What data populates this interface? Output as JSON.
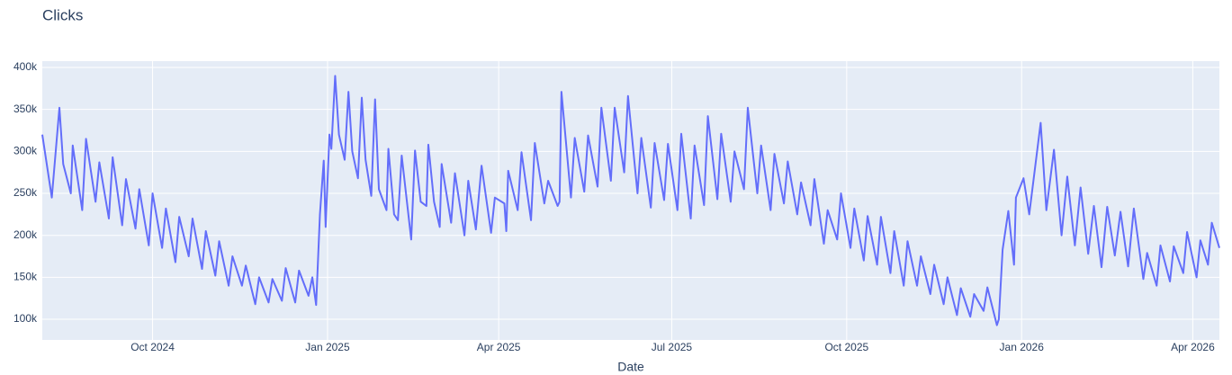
{
  "chart_data": {
    "type": "line",
    "title": "Clicks",
    "x_label": "Date",
    "x": [
      "2024-08-04",
      "2024-08-09",
      "2024-08-13",
      "2024-08-15",
      "2024-08-19",
      "2024-08-20",
      "2024-08-25",
      "2024-08-27",
      "2024-09-01",
      "2024-09-03",
      "2024-09-08",
      "2024-09-10",
      "2024-09-15",
      "2024-09-17",
      "2024-09-22",
      "2024-09-24",
      "2024-09-29",
      "2024-10-01",
      "2024-10-06",
      "2024-10-08",
      "2024-10-13",
      "2024-10-15",
      "2024-10-20",
      "2024-10-22",
      "2024-10-27",
      "2024-10-29",
      "2024-11-03",
      "2024-11-05",
      "2024-11-10",
      "2024-11-12",
      "2024-11-17",
      "2024-11-19",
      "2024-11-24",
      "2024-11-26",
      "2024-12-01",
      "2024-12-03",
      "2024-12-08",
      "2024-12-10",
      "2024-12-15",
      "2024-12-17",
      "2024-12-22",
      "2024-12-24",
      "2024-12-26",
      "2024-12-28",
      "2024-12-30",
      "2024-12-31",
      "2025-01-02",
      "2025-01-03",
      "2025-01-05",
      "2025-01-07",
      "2025-01-10",
      "2025-01-12",
      "2025-01-14",
      "2025-01-17",
      "2025-01-19",
      "2025-01-21",
      "2025-01-24",
      "2025-01-26",
      "2025-01-28",
      "2025-02-01",
      "2025-02-02",
      "2025-02-05",
      "2025-02-07",
      "2025-02-09",
      "2025-02-14",
      "2025-02-16",
      "2025-02-19",
      "2025-02-22",
      "2025-02-23",
      "2025-02-26",
      "2025-03-01",
      "2025-03-02",
      "2025-03-07",
      "2025-03-09",
      "2025-03-14",
      "2025-03-16",
      "2025-03-20",
      "2025-03-23",
      "2025-03-28",
      "2025-03-30",
      "2025-04-04",
      "2025-04-05",
      "2025-04-06",
      "2025-04-11",
      "2025-04-13",
      "2025-04-18",
      "2025-04-20",
      "2025-04-25",
      "2025-04-27",
      "2025-05-02",
      "2025-05-03",
      "2025-05-04",
      "2025-05-09",
      "2025-05-11",
      "2025-05-16",
      "2025-05-18",
      "2025-05-23",
      "2025-05-25",
      "2025-05-30",
      "2025-06-01",
      "2025-06-06",
      "2025-06-08",
      "2025-06-13",
      "2025-06-15",
      "2025-06-20",
      "2025-06-22",
      "2025-06-27",
      "2025-06-29",
      "2025-07-04",
      "2025-07-06",
      "2025-07-11",
      "2025-07-13",
      "2025-07-18",
      "2025-07-20",
      "2025-07-25",
      "2025-07-27",
      "2025-08-01",
      "2025-08-03",
      "2025-08-08",
      "2025-08-10",
      "2025-08-15",
      "2025-08-17",
      "2025-08-22",
      "2025-08-24",
      "2025-08-29",
      "2025-08-31",
      "2025-09-05",
      "2025-09-07",
      "2025-09-12",
      "2025-09-14",
      "2025-09-19",
      "2025-09-21",
      "2025-09-26",
      "2025-09-28",
      "2025-10-03",
      "2025-10-05",
      "2025-10-10",
      "2025-10-12",
      "2025-10-17",
      "2025-10-19",
      "2025-10-24",
      "2025-10-26",
      "2025-10-31",
      "2025-11-02",
      "2025-11-07",
      "2025-11-09",
      "2025-11-14",
      "2025-11-16",
      "2025-11-21",
      "2025-11-23",
      "2025-11-28",
      "2025-11-30",
      "2025-12-05",
      "2025-12-07",
      "2025-12-12",
      "2025-12-14",
      "2025-12-19",
      "2025-12-20",
      "2025-12-22",
      "2025-12-25",
      "2025-12-28",
      "2025-12-29",
      "2026-01-02",
      "2026-01-05",
      "2026-01-11",
      "2026-01-14",
      "2026-01-18",
      "2026-01-22",
      "2026-01-25",
      "2026-01-29",
      "2026-02-01",
      "2026-02-05",
      "2026-02-08",
      "2026-02-12",
      "2026-02-15",
      "2026-02-19",
      "2026-02-22",
      "2026-02-26",
      "2026-03-01",
      "2026-03-06",
      "2026-03-08",
      "2026-03-13",
      "2026-03-15",
      "2026-03-20",
      "2026-03-22",
      "2026-03-27",
      "2026-03-29",
      "2026-04-03",
      "2026-04-05",
      "2026-04-09",
      "2026-04-11",
      "2026-04-15"
    ],
    "series": [
      {
        "name": "Clicks",
        "color": "#636efa",
        "values": [
          320000,
          245000,
          352000,
          285000,
          250000,
          307000,
          230000,
          315000,
          240000,
          287000,
          220000,
          293000,
          212000,
          267000,
          208000,
          255000,
          188000,
          250000,
          185000,
          232000,
          168000,
          222000,
          175000,
          220000,
          160000,
          205000,
          152000,
          193000,
          140000,
          175000,
          140000,
          164000,
          118000,
          150000,
          120000,
          148000,
          122000,
          161000,
          120000,
          158000,
          128000,
          150000,
          117000,
          225000,
          289000,
          210000,
          320000,
          303000,
          390000,
          320000,
          290000,
          371000,
          300000,
          268000,
          364000,
          290000,
          247000,
          362000,
          255000,
          230000,
          303000,
          225000,
          218000,
          295000,
          195000,
          301000,
          240000,
          235000,
          308000,
          240000,
          210000,
          285000,
          215000,
          274000,
          200000,
          265000,
          207000,
          283000,
          203000,
          245000,
          238000,
          205000,
          277000,
          230000,
          299000,
          218000,
          310000,
          238000,
          265000,
          235000,
          240000,
          371000,
          245000,
          316000,
          252000,
          319000,
          258000,
          352000,
          265000,
          352000,
          275000,
          366000,
          250000,
          316000,
          233000,
          310000,
          242000,
          309000,
          230000,
          321000,
          220000,
          307000,
          236000,
          342000,
          243000,
          321000,
          240000,
          300000,
          255000,
          352000,
          250000,
          307000,
          230000,
          297000,
          238000,
          288000,
          225000,
          263000,
          212000,
          267000,
          190000,
          230000,
          195000,
          250000,
          185000,
          232000,
          170000,
          223000,
          165000,
          222000,
          155000,
          205000,
          140000,
          193000,
          140000,
          175000,
          130000,
          165000,
          118000,
          150000,
          105000,
          137000,
          103000,
          130000,
          110000,
          138000,
          93000,
          100000,
          183000,
          229000,
          165000,
          245000,
          268000,
          225000,
          334000,
          230000,
          302000,
          200000,
          270000,
          188000,
          257000,
          178000,
          235000,
          162000,
          234000,
          176000,
          228000,
          163000,
          232000,
          148000,
          179000,
          140000,
          188000,
          145000,
          187000,
          155000,
          204000,
          150000,
          194000,
          165000,
          215000,
          185000
        ]
      }
    ],
    "xlim": [
      "2024-08-04",
      "2026-04-15"
    ],
    "xticks": [
      {
        "value": "2024-10-01",
        "label": "Oct 2024"
      },
      {
        "value": "2025-01-01",
        "label": "Jan 2025"
      },
      {
        "value": "2025-04-01",
        "label": "Apr 2025"
      },
      {
        "value": "2025-07-01",
        "label": "Jul 2025"
      },
      {
        "value": "2025-10-01",
        "label": "Oct 2025"
      },
      {
        "value": "2026-01-01",
        "label": "Jan 2026"
      },
      {
        "value": "2026-04-01",
        "label": "Apr 2026"
      }
    ],
    "ylim": [
      75400,
      407500
    ],
    "yticks": [
      {
        "value": 100000,
        "label": "100k"
      },
      {
        "value": 150000,
        "label": "150k"
      },
      {
        "value": 200000,
        "label": "200k"
      },
      {
        "value": 250000,
        "label": "250k"
      },
      {
        "value": 300000,
        "label": "300k"
      },
      {
        "value": 350000,
        "label": "350k"
      },
      {
        "value": 400000,
        "label": "400k"
      }
    ],
    "grid": true
  }
}
